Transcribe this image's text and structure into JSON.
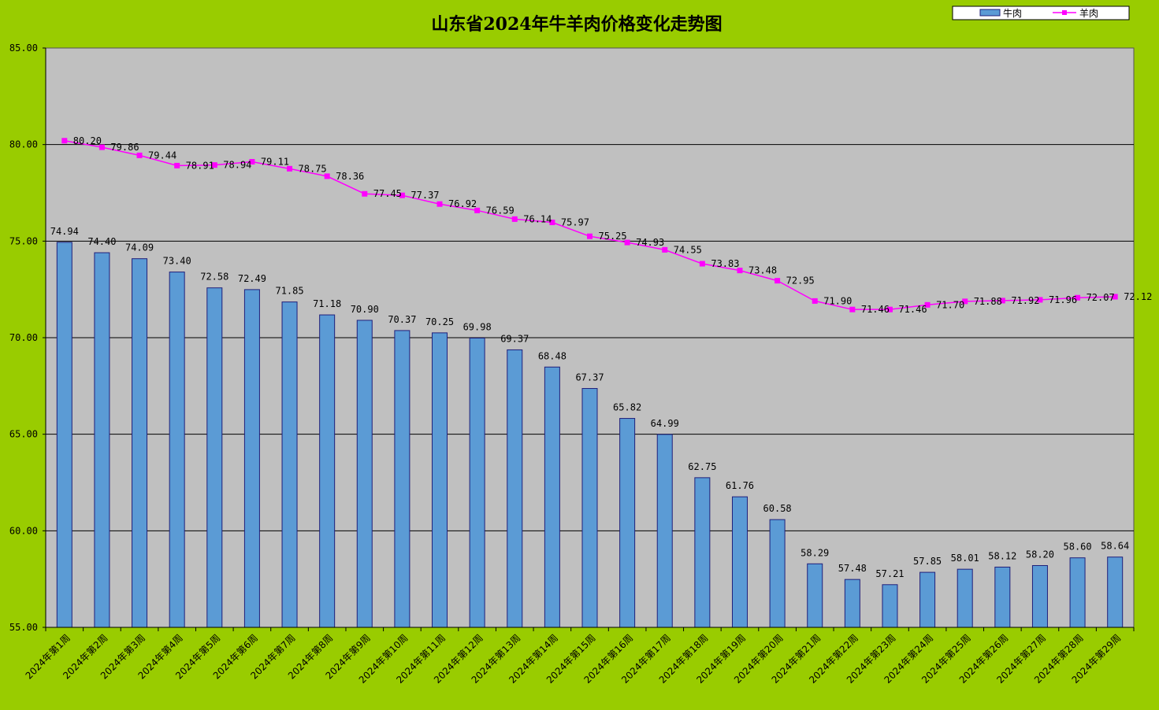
{
  "colors": {
    "background": "#99cc00",
    "plot_area": "#c0c0c0",
    "beef_bar": "#5b9bd5",
    "beef_bar_border": "#1f1f7a",
    "mutton_line": "#ff00ff",
    "gridline": "#000000"
  },
  "chart_data": {
    "type": "bar+line",
    "title": "山东省2024年牛羊肉价格变化走势图",
    "ylim": [
      55,
      85
    ],
    "yticks": [
      "55.00",
      "60.00",
      "65.00",
      "70.00",
      "75.00",
      "80.00",
      "85.00"
    ],
    "grid": true,
    "legend_position": "top-right",
    "categories": [
      "2024年第1周",
      "2024年第2周",
      "2024年第3周",
      "2024年第4周",
      "2024年第5周",
      "2024年第6周",
      "2024年第7周",
      "2024年第8周",
      "2024年第9周",
      "2024年第10周",
      "2024年第11周",
      "2024年第12周",
      "2024年第13周",
      "2024年第14周",
      "2024年第15周",
      "2024年第16周",
      "2024年第17周",
      "2024年第18周",
      "2024年第19周",
      "2024年第20周",
      "2024年第21周",
      "2024年第22周",
      "2024年第23周",
      "2024年第24周",
      "2024年第25周",
      "2024年第26周",
      "2024年第27周",
      "2024年第28周",
      "2024年第29周"
    ],
    "series": [
      {
        "name": "牛肉",
        "kind": "bar",
        "values": [
          74.94,
          74.4,
          74.09,
          73.4,
          72.58,
          72.49,
          71.85,
          71.18,
          70.9,
          70.37,
          70.25,
          69.98,
          69.37,
          68.48,
          67.37,
          65.82,
          64.99,
          62.75,
          61.76,
          60.58,
          58.29,
          57.48,
          57.21,
          57.85,
          58.01,
          58.12,
          58.2,
          58.6,
          58.64
        ]
      },
      {
        "name": "羊肉",
        "kind": "line",
        "values": [
          80.2,
          79.86,
          79.44,
          78.91,
          78.94,
          79.11,
          78.75,
          78.36,
          77.45,
          77.37,
          76.92,
          76.59,
          76.14,
          75.97,
          75.25,
          74.93,
          74.55,
          73.83,
          73.48,
          72.95,
          71.9,
          71.46,
          71.46,
          71.7,
          71.88,
          71.92,
          71.96,
          72.07,
          72.12
        ]
      }
    ]
  }
}
